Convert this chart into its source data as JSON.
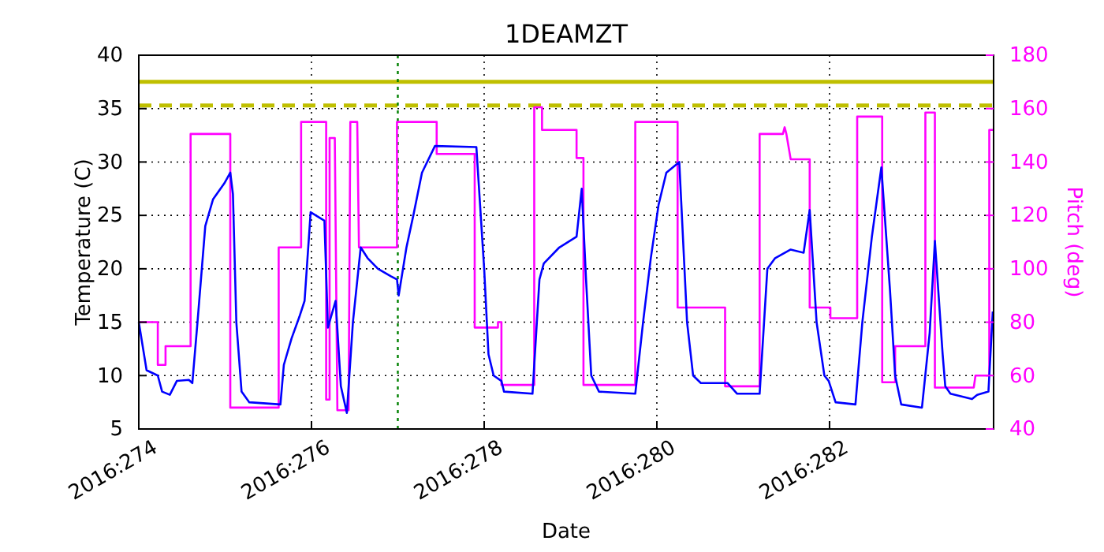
{
  "chart_data": {
    "type": "line",
    "title": "1DEAMZT",
    "xlabel": "Date",
    "ylabel": "Temperature (C)",
    "y2label": "Pitch (deg)",
    "xlim": [
      "2016-09-30T00:00",
      "2016-10-09T21:36"
    ],
    "xticks": [
      {
        "value": "2016-09-30",
        "label": "2016:274"
      },
      {
        "value": "2016-10-02",
        "label": "2016:276"
      },
      {
        "value": "2016-10-04",
        "label": "2016:278"
      },
      {
        "value": "2016-10-06",
        "label": "2016:280"
      },
      {
        "value": "2016-10-08",
        "label": "2016:282"
      }
    ],
    "ylim": [
      5,
      40
    ],
    "yticks": [
      5,
      10,
      15,
      20,
      25,
      30,
      35,
      40
    ],
    "y2lim": [
      40,
      180
    ],
    "y2ticks": [
      40,
      60,
      80,
      100,
      120,
      140,
      160,
      180
    ],
    "grid": true,
    "series": [
      {
        "color": "#0000ff",
        "x": [
          "2016-09-30T00:00",
          "2016-09-30T02:10",
          "2016-09-30T05:17",
          "2016-09-30T06:29",
          "2016-09-30T08:38",
          "2016-09-30T10:34",
          "2016-09-30T13:55",
          "2016-09-30T14:53",
          "2016-09-30T16:19",
          "2016-09-30T18:29",
          "2016-09-30T20:38",
          "2016-09-30T23:46",
          "2016-10-01T01:26",
          "2016-10-01T02:10",
          "2016-10-01T03:07",
          "2016-10-01T04:34",
          "2016-10-01T06:43",
          "2016-10-01T15:22",
          "2016-10-01T16:19",
          "2016-10-01T18:29",
          "2016-10-01T20:38",
          "2016-10-01T22:05",
          "2016-10-01T23:46",
          "2016-10-02T03:36",
          "2016-10-02T04:34",
          "2016-10-02T06:43",
          "2016-10-02T08:10",
          "2016-10-02T09:50",
          "2016-10-02T11:31",
          "2016-10-02T13:41",
          "2016-10-02T15:36",
          "2016-10-02T18:29",
          "2016-10-02T22:05",
          "2016-10-02T23:46",
          "2016-10-03T00:14",
          "2016-10-03T02:24",
          "2016-10-03T04:19",
          "2016-10-03T06:43",
          "2016-10-03T10:19",
          "2016-10-03T21:50",
          "2016-10-04T00:00",
          "2016-10-04T01:12",
          "2016-10-04T02:38",
          "2016-10-04T04:48",
          "2016-10-04T05:31",
          "2016-10-04T13:26",
          "2016-10-04T15:22",
          "2016-10-04T16:34",
          "2016-10-04T20:53",
          "2016-10-05T01:41",
          "2016-10-05T03:07",
          "2016-10-05T04:19",
          "2016-10-05T05:46",
          "2016-10-05T07:55",
          "2016-10-05T18:00",
          "2016-10-05T20:10",
          "2016-10-05T22:19",
          "2016-10-06T00:29",
          "2016-10-06T02:38",
          "2016-10-06T06:14",
          "2016-10-06T08:24",
          "2016-10-06T10:05",
          "2016-10-06T12:14",
          "2016-10-06T19:41",
          "2016-10-06T22:19",
          "2016-10-07T04:34",
          "2016-10-07T06:43",
          "2016-10-07T08:53",
          "2016-10-07T13:12",
          "2016-10-07T16:48",
          "2016-10-07T18:29",
          "2016-10-07T20:24",
          "2016-10-07T22:34",
          "2016-10-07T23:46",
          "2016-10-08T01:41",
          "2016-10-08T07:12",
          "2016-10-08T09:07",
          "2016-10-08T11:46",
          "2016-10-08T14:24",
          "2016-10-08T16:48",
          "2016-10-08T18:14",
          "2016-10-08T19:55",
          "2016-10-09T01:41",
          "2016-10-09T03:50",
          "2016-10-09T05:17",
          "2016-10-09T07:26",
          "2016-10-09T08:10",
          "2016-10-09T09:36",
          "2016-10-09T15:36",
          "2016-10-09T17:02",
          "2016-10-09T20:10",
          "2016-10-09T21:22"
        ],
        "values": [
          15,
          10.5,
          10,
          8.5,
          8.2,
          9.5,
          9.6,
          9.3,
          15,
          24,
          26.5,
          28,
          29,
          27,
          15,
          8.5,
          7.5,
          7.3,
          11,
          13.5,
          15.5,
          17,
          25.3,
          24.5,
          14.5,
          17,
          9,
          6.5,
          15,
          22,
          21,
          20,
          19.3,
          19,
          17.5,
          22,
          25,
          29,
          31.5,
          31.4,
          20,
          12,
          10,
          9.5,
          8.5,
          8.3,
          19,
          20.5,
          22,
          23,
          27.5,
          19,
          10,
          8.5,
          8.3,
          15,
          21,
          26,
          29,
          30,
          15,
          10,
          9.3,
          9.3,
          8.3,
          8.3,
          20,
          21,
          21.8,
          21.5,
          25.5,
          15,
          10,
          9.5,
          7.5,
          7.3,
          15,
          23,
          29.5,
          18,
          10,
          7.3,
          7,
          14,
          22.6,
          12,
          9,
          8.3,
          7.8,
          8.2,
          8.5,
          16
        ]
      },
      {
        "color": "#ff00ff",
        "axis": "y2",
        "x": [
          "2016-09-30T00:00",
          "2016-09-30T05:17",
          "2016-09-30T05:17",
          "2016-09-30T07:26",
          "2016-09-30T07:26",
          "2016-09-30T14:24",
          "2016-09-30T14:24",
          "2016-10-01T01:26",
          "2016-10-01T01:26",
          "2016-10-01T14:53",
          "2016-10-01T14:53",
          "2016-10-01T21:07",
          "2016-10-01T21:07",
          "2016-10-02T04:05",
          "2016-10-02T04:05",
          "2016-10-02T05:02",
          "2016-10-02T05:02",
          "2016-10-02T06:29",
          "2016-10-02T07:12",
          "2016-10-02T10:19",
          "2016-10-02T10:48",
          "2016-10-02T12:43",
          "2016-10-02T13:12",
          "2016-10-02T23:46",
          "2016-10-02T23:46",
          "2016-10-03T10:48",
          "2016-10-03T10:48",
          "2016-10-03T21:22",
          "2016-10-03T21:22",
          "2016-10-04T03:50",
          "2016-10-04T03:50",
          "2016-10-04T04:48",
          "2016-10-04T04:48",
          "2016-10-04T13:55",
          "2016-10-04T13:55",
          "2016-10-04T16:05",
          "2016-10-04T16:05",
          "2016-10-05T01:41",
          "2016-10-05T01:41",
          "2016-10-05T03:36",
          "2016-10-05T03:36",
          "2016-10-05T18:00",
          "2016-10-05T18:00",
          "2016-10-06T05:46",
          "2016-10-06T05:46",
          "2016-10-06T18:58",
          "2016-10-06T18:58",
          "2016-10-07T04:34",
          "2016-10-07T04:34",
          "2016-10-07T11:02",
          "2016-10-07T11:31",
          "2016-10-07T12:00",
          "2016-10-07T13:12",
          "2016-10-07T18:29",
          "2016-10-07T18:29",
          "2016-10-08T00:14",
          "2016-10-08T00:14",
          "2016-10-08T07:41",
          "2016-10-08T07:41",
          "2016-10-08T14:38",
          "2016-10-08T14:38",
          "2016-10-08T18:14",
          "2016-10-08T18:14",
          "2016-10-09T02:38",
          "2016-10-09T02:38",
          "2016-10-09T05:17",
          "2016-10-09T05:17",
          "2016-10-09T16:05",
          "2016-10-09T16:34",
          "2016-10-09T20:24",
          "2016-10-09T20:24",
          "2016-10-09T21:36"
        ],
        "values": [
          80,
          80,
          64,
          64,
          71,
          71,
          150.5,
          150.5,
          48,
          48,
          108,
          108,
          155,
          155,
          51,
          51,
          149,
          149,
          47,
          47,
          155,
          155,
          108,
          108,
          155,
          155,
          143,
          143,
          78,
          78,
          80,
          80,
          56.5,
          56.5,
          160.5,
          160.5,
          152,
          152,
          141.5,
          141.5,
          56.5,
          56.5,
          155,
          155,
          85.5,
          85.5,
          56,
          56,
          150.5,
          150.5,
          153,
          150.5,
          141,
          141,
          85.5,
          85.5,
          81.5,
          81.5,
          157,
          157,
          57.5,
          57.5,
          71,
          71,
          158.5,
          158.5,
          55.5,
          55.5,
          60,
          60,
          152,
          152
        ]
      }
    ],
    "ref_lines": [
      {
        "axis": "y",
        "value": 37.5,
        "color": "#bfbf00",
        "line_style": "solid"
      },
      {
        "axis": "y",
        "value": 35.3,
        "color": "#bfbf00",
        "line_style": "dashed"
      },
      {
        "axis": "x",
        "value": "2016-10-03",
        "color": "#008000",
        "line_style": "dotted"
      }
    ]
  }
}
